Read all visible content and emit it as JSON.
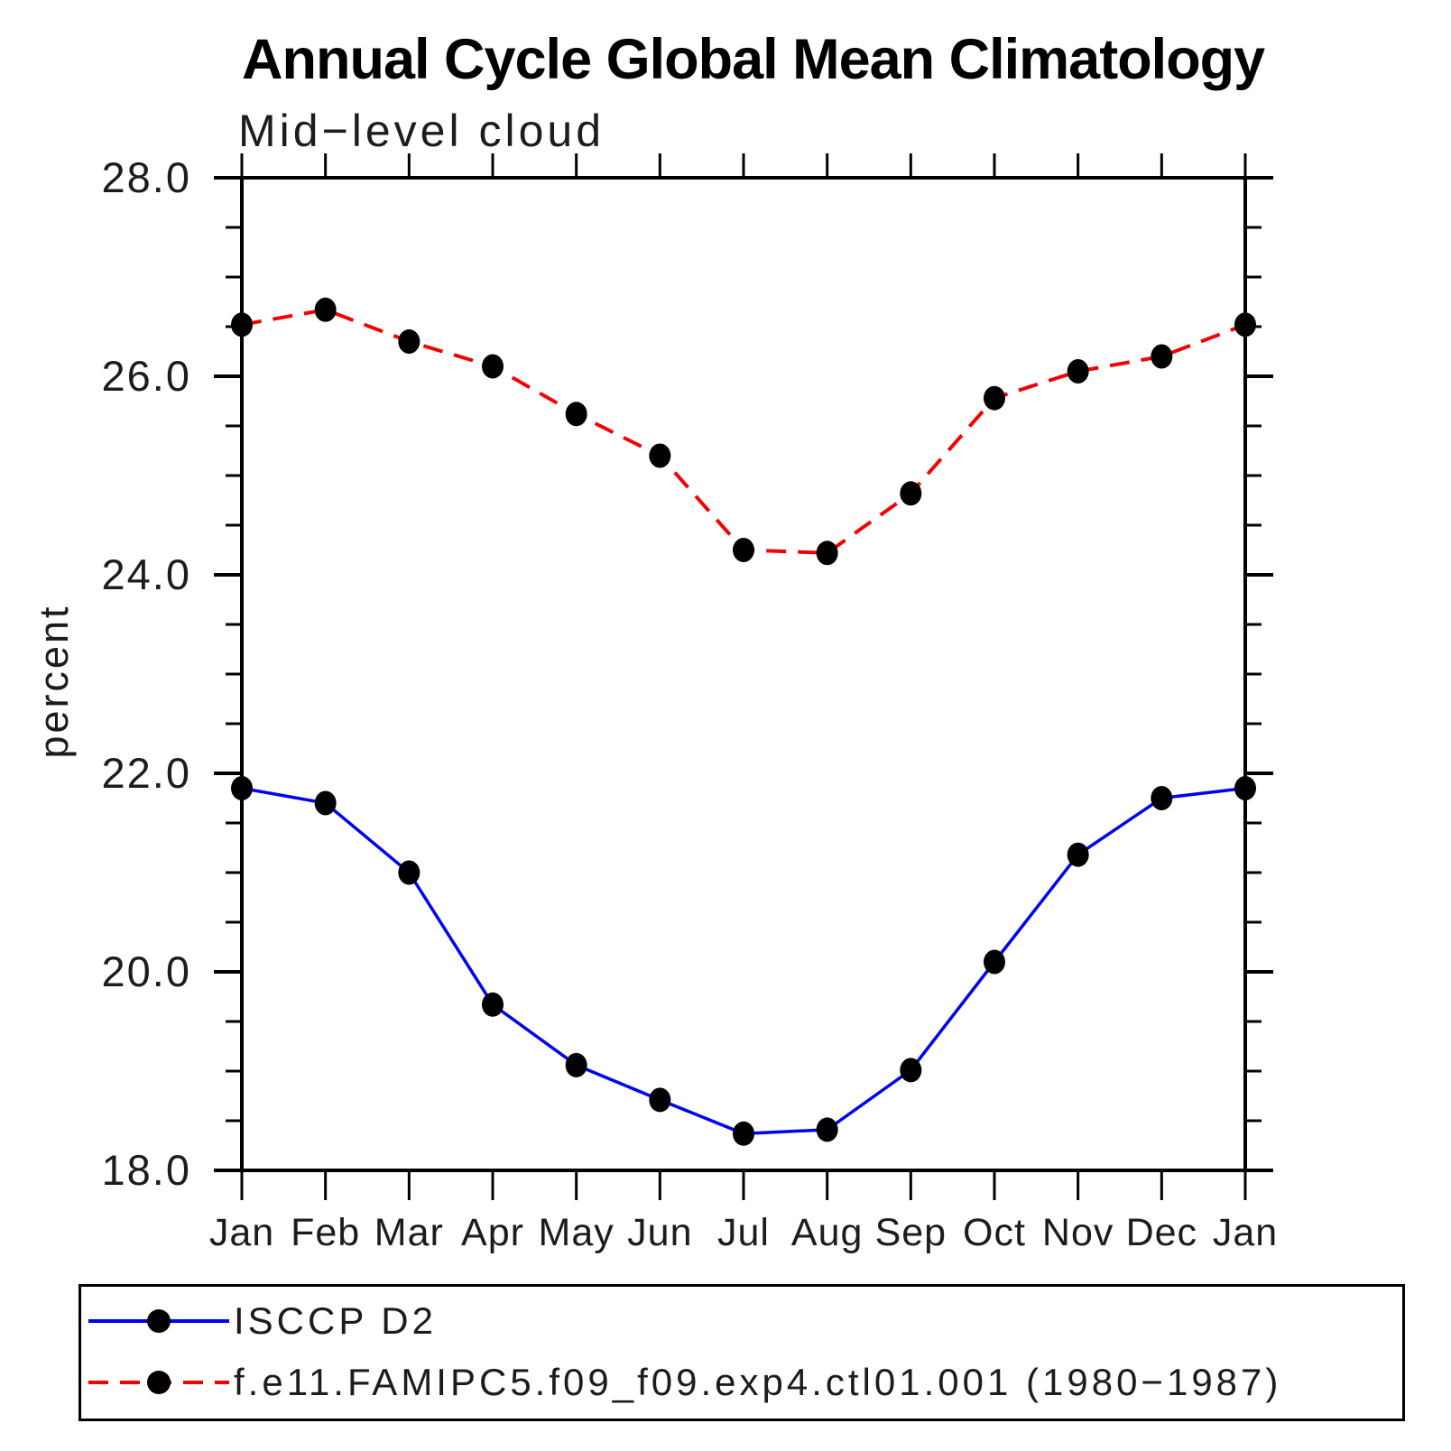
{
  "chart_data": {
    "type": "line",
    "title": "Annual Cycle Global Mean Climatology",
    "subtitle": "Mid−level cloud",
    "categories": [
      "Jan",
      "Feb",
      "Mar",
      "Apr",
      "May",
      "Jun",
      "Jul",
      "Aug",
      "Sep",
      "Oct",
      "Nov",
      "Dec",
      "Jan"
    ],
    "series": [
      {
        "name": "ISCCP D2",
        "color": "#0000F2",
        "line_style": "solid",
        "marker": "circle",
        "marker_color": "#000000",
        "values": [
          21.85,
          21.7,
          21.0,
          19.67,
          19.06,
          18.71,
          18.37,
          18.41,
          19.01,
          20.1,
          21.18,
          21.75,
          21.85
        ]
      },
      {
        "name": "f.e11.FAMIPC5.f09_f09.exp4.ctl01.001 (1980−1987)",
        "color": "#F40000",
        "line_style": "dashed",
        "marker": "circle",
        "marker_color": "#000000",
        "values": [
          26.52,
          26.67,
          26.35,
          26.1,
          25.62,
          25.2,
          24.25,
          24.22,
          24.82,
          25.78,
          26.05,
          26.2,
          26.52
        ]
      }
    ],
    "xlabel": "",
    "ylabel": "percent",
    "ylim": [
      18.0,
      28.0
    ],
    "y_major_ticks": [
      18.0,
      20.0,
      22.0,
      24.0,
      26.0,
      28.0
    ],
    "y_tick_labels": [
      "18.0",
      "20.0",
      "22.0",
      "24.0",
      "26.0",
      "28.0"
    ],
    "y_minor_step": 0.5,
    "grid": false,
    "legend_position": "bottom-left"
  }
}
